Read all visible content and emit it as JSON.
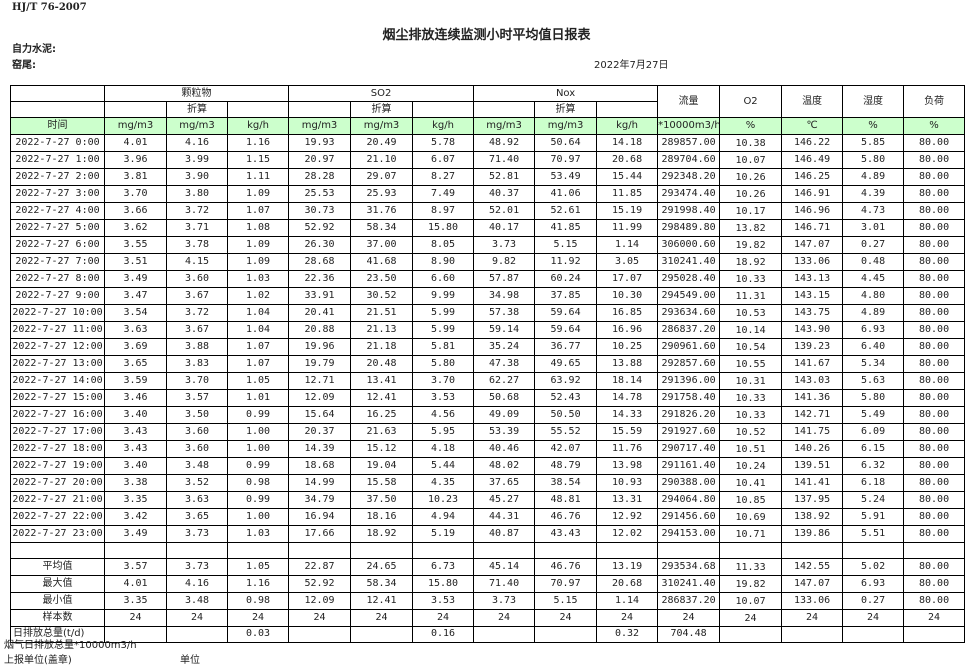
{
  "standard": "HJ/T  76-2007",
  "title": "烟尘排放连续监测小时平均值日报表",
  "company": "自力水泥:",
  "unit": "窑尾:",
  "date": "2022年7月27日",
  "header": {
    "groups": [
      "颗粒物",
      "SO2",
      "Nox"
    ],
    "converted": "折算",
    "flow": "流量",
    "o2": "O2",
    "temperature": "温度",
    "humidity": "湿度",
    "load": "负荷",
    "units": [
      "时间",
      "mg/m3",
      "mg/m3",
      "kg/h",
      "mg/m3",
      "mg/m3",
      "kg/h",
      "mg/m3",
      "mg/m3",
      "kg/h",
      "*10000m3/h",
      "%",
      "℃",
      "%",
      "%"
    ]
  },
  "rows": [
    [
      "2022-7-27 0:00",
      "4.01",
      "4.16",
      "1.16",
      "19.93",
      "20.49",
      "5.78",
      "48.92",
      "50.64",
      "14.18",
      "289857.00",
      "10.38",
      "146.22",
      "5.85",
      "80.00"
    ],
    [
      "2022-7-27 1:00",
      "3.96",
      "3.99",
      "1.15",
      "20.97",
      "21.10",
      "6.07",
      "71.40",
      "70.97",
      "20.68",
      "289704.60",
      "10.07",
      "146.49",
      "5.80",
      "80.00"
    ],
    [
      "2022-7-27 2:00",
      "3.81",
      "3.90",
      "1.11",
      "28.28",
      "29.07",
      "8.27",
      "52.81",
      "53.49",
      "15.44",
      "292348.20",
      "10.26",
      "146.25",
      "4.89",
      "80.00"
    ],
    [
      "2022-7-27 3:00",
      "3.70",
      "3.80",
      "1.09",
      "25.53",
      "25.93",
      "7.49",
      "40.37",
      "41.06",
      "11.85",
      "293474.40",
      "10.26",
      "146.91",
      "4.39",
      "80.00"
    ],
    [
      "2022-7-27 4:00",
      "3.66",
      "3.72",
      "1.07",
      "30.73",
      "31.76",
      "8.97",
      "52.01",
      "52.61",
      "15.19",
      "291998.40",
      "10.17",
      "146.96",
      "4.73",
      "80.00"
    ],
    [
      "2022-7-27 5:00",
      "3.62",
      "3.71",
      "1.08",
      "52.92",
      "58.34",
      "15.80",
      "40.17",
      "41.85",
      "11.99",
      "298489.80",
      "13.82",
      "146.71",
      "3.01",
      "80.00"
    ],
    [
      "2022-7-27 6:00",
      "3.55",
      "3.78",
      "1.09",
      "26.30",
      "37.00",
      "8.05",
      "3.73",
      "5.15",
      "1.14",
      "306000.60",
      "19.82",
      "147.07",
      "0.27",
      "80.00"
    ],
    [
      "2022-7-27 7:00",
      "3.51",
      "4.15",
      "1.09",
      "28.68",
      "41.68",
      "8.90",
      "9.82",
      "11.92",
      "3.05",
      "310241.40",
      "18.92",
      "133.06",
      "0.48",
      "80.00"
    ],
    [
      "2022-7-27 8:00",
      "3.49",
      "3.60",
      "1.03",
      "22.36",
      "23.50",
      "6.60",
      "57.87",
      "60.24",
      "17.07",
      "295028.40",
      "10.33",
      "143.13",
      "4.45",
      "80.00"
    ],
    [
      "2022-7-27 9:00",
      "3.47",
      "3.67",
      "1.02",
      "33.91",
      "30.52",
      "9.99",
      "34.98",
      "37.85",
      "10.30",
      "294549.00",
      "11.31",
      "143.15",
      "4.80",
      "80.00"
    ],
    [
      "2022-7-27 10:00",
      "3.54",
      "3.72",
      "1.04",
      "20.41",
      "21.51",
      "5.99",
      "57.38",
      "59.64",
      "16.85",
      "293634.60",
      "10.53",
      "143.75",
      "4.89",
      "80.00"
    ],
    [
      "2022-7-27 11:00",
      "3.63",
      "3.67",
      "1.04",
      "20.88",
      "21.13",
      "5.99",
      "59.14",
      "59.64",
      "16.96",
      "286837.20",
      "10.14",
      "143.90",
      "6.93",
      "80.00"
    ],
    [
      "2022-7-27 12:00",
      "3.69",
      "3.88",
      "1.07",
      "19.96",
      "21.18",
      "5.81",
      "35.24",
      "36.77",
      "10.25",
      "290961.60",
      "10.54",
      "139.23",
      "6.40",
      "80.00"
    ],
    [
      "2022-7-27 13:00",
      "3.65",
      "3.83",
      "1.07",
      "19.79",
      "20.48",
      "5.80",
      "47.38",
      "49.65",
      "13.88",
      "292857.60",
      "10.55",
      "141.67",
      "5.34",
      "80.00"
    ],
    [
      "2022-7-27 14:00",
      "3.59",
      "3.70",
      "1.05",
      "12.71",
      "13.41",
      "3.70",
      "62.27",
      "63.92",
      "18.14",
      "291396.00",
      "10.31",
      "143.03",
      "5.63",
      "80.00"
    ],
    [
      "2022-7-27 15:00",
      "3.46",
      "3.57",
      "1.01",
      "12.09",
      "12.41",
      "3.53",
      "50.68",
      "52.43",
      "14.78",
      "291758.40",
      "10.33",
      "141.36",
      "5.80",
      "80.00"
    ],
    [
      "2022-7-27 16:00",
      "3.40",
      "3.50",
      "0.99",
      "15.64",
      "16.25",
      "4.56",
      "49.09",
      "50.50",
      "14.33",
      "291826.20",
      "10.33",
      "142.71",
      "5.49",
      "80.00"
    ],
    [
      "2022-7-27 17:00",
      "3.43",
      "3.60",
      "1.00",
      "20.37",
      "21.63",
      "5.95",
      "53.39",
      "55.52",
      "15.59",
      "291927.60",
      "10.52",
      "141.75",
      "6.09",
      "80.00"
    ],
    [
      "2022-7-27 18:00",
      "3.43",
      "3.60",
      "1.00",
      "14.39",
      "15.12",
      "4.18",
      "40.46",
      "42.07",
      "11.76",
      "290717.40",
      "10.51",
      "140.26",
      "6.15",
      "80.00"
    ],
    [
      "2022-7-27 19:00",
      "3.40",
      "3.48",
      "0.99",
      "18.68",
      "19.04",
      "5.44",
      "48.02",
      "48.79",
      "13.98",
      "291161.40",
      "10.24",
      "139.51",
      "6.32",
      "80.00"
    ],
    [
      "2022-7-27 20:00",
      "3.38",
      "3.52",
      "0.98",
      "14.99",
      "15.58",
      "4.35",
      "37.65",
      "38.54",
      "10.93",
      "290388.00",
      "10.41",
      "141.41",
      "6.18",
      "80.00"
    ],
    [
      "2022-7-27 21:00",
      "3.35",
      "3.63",
      "0.99",
      "34.79",
      "37.50",
      "10.23",
      "45.27",
      "48.81",
      "13.31",
      "294064.80",
      "10.85",
      "137.95",
      "5.24",
      "80.00"
    ],
    [
      "2022-7-27 22:00",
      "3.42",
      "3.65",
      "1.00",
      "16.94",
      "18.16",
      "4.94",
      "44.31",
      "46.76",
      "12.92",
      "291456.60",
      "10.69",
      "138.92",
      "5.91",
      "80.00"
    ],
    [
      "2022-7-27 23:00",
      "3.49",
      "3.73",
      "1.03",
      "17.66",
      "18.92",
      "5.19",
      "40.87",
      "43.43",
      "12.02",
      "294153.00",
      "10.71",
      "139.86",
      "5.51",
      "80.00"
    ]
  ],
  "summary": [
    [
      "平均值",
      "3.57",
      "3.73",
      "1.05",
      "22.87",
      "24.65",
      "6.73",
      "45.14",
      "46.76",
      "13.19",
      "293534.68",
      "11.33",
      "142.55",
      "5.02",
      "80.00"
    ],
    [
      "最大值",
      "4.01",
      "4.16",
      "1.16",
      "52.92",
      "58.34",
      "15.80",
      "71.40",
      "70.97",
      "20.68",
      "310241.40",
      "19.82",
      "147.07",
      "6.93",
      "80.00"
    ],
    [
      "最小值",
      "3.35",
      "3.48",
      "0.98",
      "12.09",
      "12.41",
      "3.53",
      "3.73",
      "5.15",
      "1.14",
      "286837.20",
      "10.07",
      "133.06",
      "0.27",
      "80.00"
    ],
    [
      "样本数",
      "24",
      "24",
      "24",
      "24",
      "24",
      "24",
      "24",
      "24",
      "24",
      "24",
      "24",
      "24",
      "24",
      "24"
    ],
    [
      "日排放总量(t/d)",
      "",
      "",
      "0.03",
      "",
      "",
      "0.16",
      "",
      "",
      "0.32",
      "704.48",
      "",
      "",
      "",
      ""
    ]
  ],
  "footer": {
    "flue_gas_total": "烟气日排放总量*10000m3/h",
    "reporting_unit": "上报单位(盖章)",
    "unit_label": "单位"
  }
}
